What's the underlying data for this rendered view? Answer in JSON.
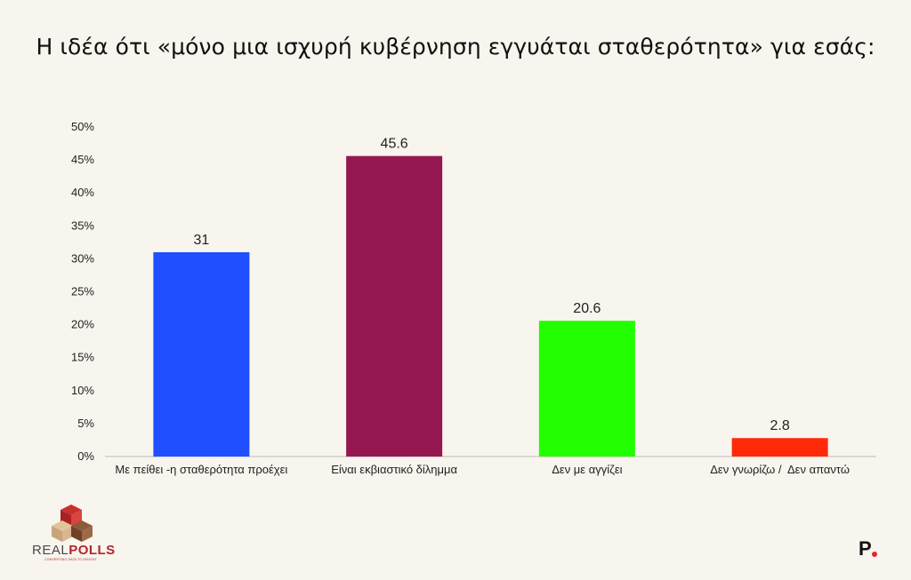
{
  "header": {
    "title": "Η ιδέα ότι «μόνο μια ισχυρή κυβέρνηση εγγυάται σταθερότητα» για εσάς:"
  },
  "chart_data": {
    "type": "bar",
    "title": "Η ιδέα ότι «μόνο μια ισχυρή κυβέρνηση εγγυάται σταθερότητα» για εσάς:",
    "categories": [
      "Με πείθει -η σταθερότητα προέχει",
      "Είναι εκβιαστικό δίλημμα",
      "Δεν με αγγίζει",
      "Δεν γνωρίζω /  Δεν απαντώ"
    ],
    "values": [
      31,
      45.6,
      20.6,
      2.8
    ],
    "value_labels": [
      "31",
      "45.6",
      "20.6",
      "2.8"
    ],
    "bar_colors": [
      "#1f4fff",
      "#951752",
      "#22ff00",
      "#ff2a0a"
    ],
    "y_ticks": [
      "0%",
      "5%",
      "10%",
      "15%",
      "20%",
      "25%",
      "30%",
      "35%",
      "40%",
      "45%",
      "50%"
    ],
    "ylim": [
      0,
      50
    ],
    "xlabel": "",
    "ylabel": "",
    "grid": false,
    "legend": "none"
  },
  "branding": {
    "logo_word_left": "REAL",
    "logo_word_right": "POLLS",
    "logo_tagline": "CONVERTING DATA TO INSIGHT",
    "brand_mark": "P"
  },
  "colors": {
    "background": "#f8f4ee",
    "axis": "#bbbbbb",
    "logo_red": "#b3262d",
    "brand_dot": "#e5252a"
  }
}
